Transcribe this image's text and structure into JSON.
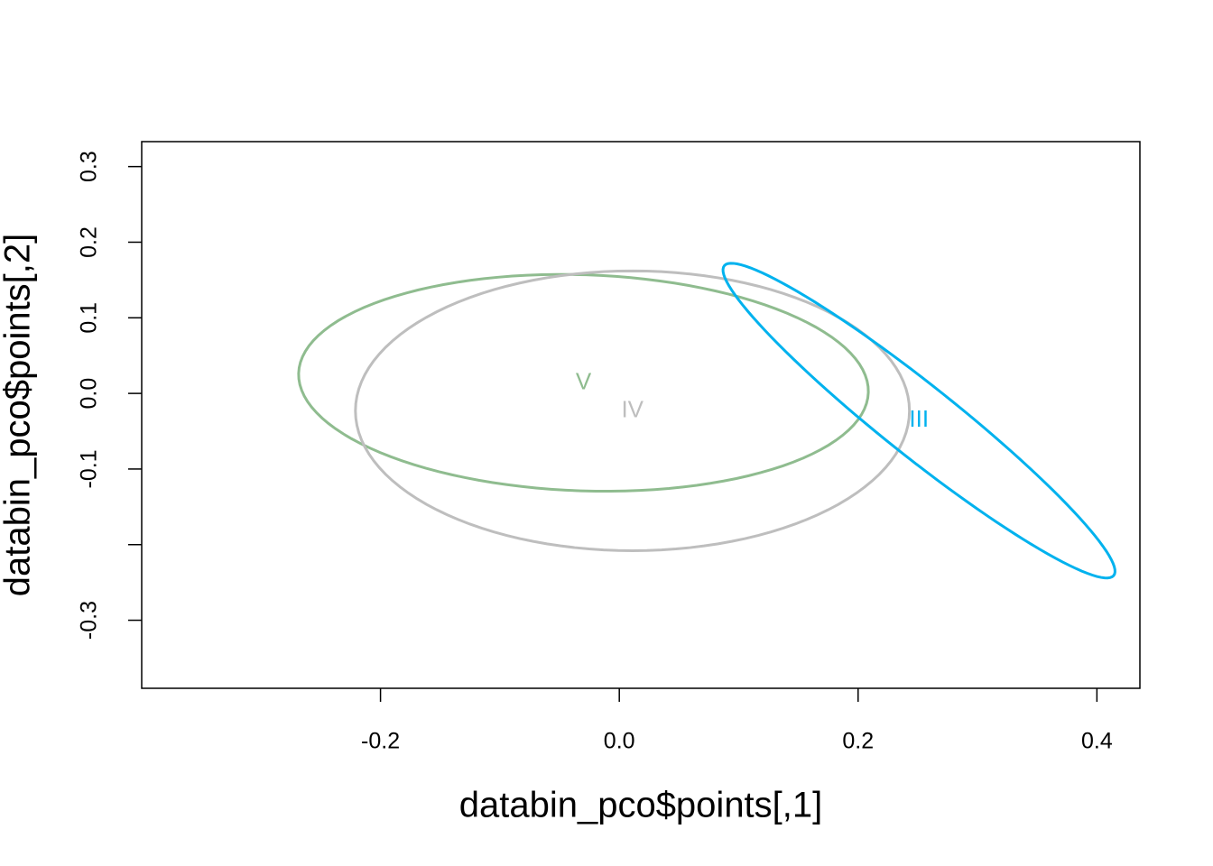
{
  "chart_data": {
    "type": "ellipse",
    "x_label": "databin_pco$points[,1]",
    "y_label": "databin_pco$points[,2]",
    "xlim": [
      -0.4,
      0.436
    ],
    "ylim": [
      -0.39,
      0.333
    ],
    "xticks": [
      -0.2,
      {
        "value": 0,
        "label": "0.0"
      },
      0.2,
      0.4
    ],
    "yticks": [
      -0.3,
      {
        "value": -0.2,
        "label": null
      },
      -0.1,
      {
        "value": 0,
        "label": "0.0"
      },
      0.1,
      0.2,
      0.3
    ],
    "series": [
      {
        "name": "V",
        "color": "#8fbc8f",
        "center": [
          -0.03,
          0.014
        ],
        "axis1": [
          0.236,
          0.01
        ],
        "axis2": [
          -0.035,
          0.143
        ]
      },
      {
        "name": "IV",
        "color": "#bebebe",
        "center": [
          0.011,
          -0.023
        ],
        "axis1": [
          0.232,
          0
        ],
        "axis2": [
          0,
          0.185
        ]
      },
      {
        "name": "III",
        "color": "#00b2ee",
        "center": [
          0.251,
          -0.036
        ],
        "axis1": [
          0.163,
          -0.205
        ],
        "axis2": [
          0.0196,
          0.036
        ]
      }
    ]
  }
}
